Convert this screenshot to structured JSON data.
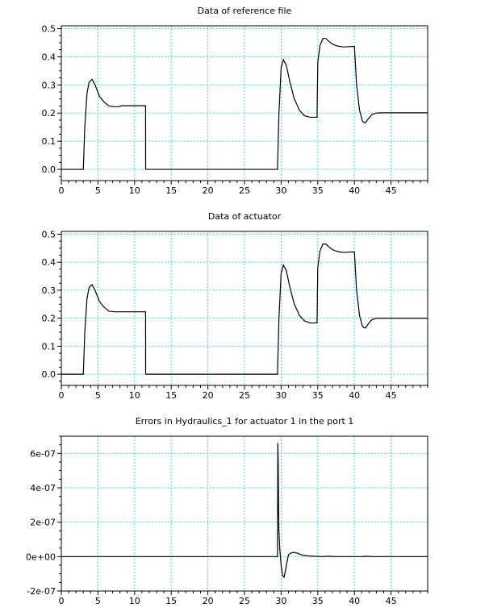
{
  "chart_data": [
    {
      "type": "line",
      "title": "Data of reference file",
      "xlim": [
        0,
        50
      ],
      "ylim": [
        -0.04,
        0.51
      ],
      "xticks": [
        0,
        5,
        10,
        15,
        20,
        25,
        30,
        35,
        40,
        45
      ],
      "yticks": [
        0.0,
        0.1,
        0.2,
        0.3,
        0.4,
        0.5
      ],
      "ytick_labels": [
        "0.0",
        "0.1",
        "0.2",
        "0.3",
        "0.4",
        "0.5"
      ],
      "grid": true,
      "series": [
        {
          "x": [
            0,
            3,
            3.2,
            3.5,
            3.8,
            4.2,
            4.6,
            5.2,
            5.8,
            6.5,
            7.3,
            8.0,
            8.2,
            9.0,
            11.5,
            11.51,
            29.5,
            29.7,
            30.0,
            30.3,
            30.7,
            31.2,
            31.8,
            32.5,
            33.2,
            34.0,
            34.9,
            35.0,
            35.3,
            35.7,
            36.1,
            36.5,
            37.0,
            37.7,
            38.5,
            39.3,
            40.0,
            40.3,
            40.7,
            41.1,
            41.5,
            41.9,
            42.4,
            43.0,
            44.0,
            45.0,
            50.0
          ],
          "y": [
            0.0,
            0.0,
            0.15,
            0.27,
            0.31,
            0.32,
            0.3,
            0.26,
            0.24,
            0.225,
            0.222,
            0.223,
            0.226,
            0.226,
            0.226,
            0.0,
            0.0,
            0.2,
            0.36,
            0.39,
            0.37,
            0.31,
            0.25,
            0.21,
            0.19,
            0.185,
            0.185,
            0.38,
            0.44,
            0.465,
            0.465,
            0.455,
            0.445,
            0.438,
            0.435,
            0.436,
            0.437,
            0.3,
            0.21,
            0.17,
            0.165,
            0.18,
            0.195,
            0.2,
            0.201,
            0.201,
            0.201
          ]
        }
      ]
    },
    {
      "type": "line",
      "title": "Data of actuator",
      "xlim": [
        0,
        50
      ],
      "ylim": [
        -0.04,
        0.51
      ],
      "xticks": [
        0,
        5,
        10,
        15,
        20,
        25,
        30,
        35,
        40,
        45
      ],
      "yticks": [
        0.0,
        0.1,
        0.2,
        0.3,
        0.4,
        0.5
      ],
      "ytick_labels": [
        "0.0",
        "0.1",
        "0.2",
        "0.3",
        "0.4",
        "0.5"
      ],
      "grid": true,
      "series": [
        {
          "x": [
            0,
            3,
            3.2,
            3.5,
            3.8,
            4.2,
            4.6,
            5.2,
            5.8,
            6.5,
            7.3,
            8.0,
            9.0,
            11.5,
            11.51,
            29.5,
            29.7,
            30.0,
            30.3,
            30.7,
            31.2,
            31.8,
            32.5,
            33.2,
            34.0,
            34.9,
            35.0,
            35.3,
            35.7,
            36.1,
            36.5,
            37.0,
            37.7,
            38.5,
            39.3,
            40.0,
            40.3,
            40.7,
            41.1,
            41.5,
            41.9,
            42.4,
            43.0,
            44.0,
            45.0,
            50.0
          ],
          "y": [
            0.0,
            0.0,
            0.15,
            0.27,
            0.31,
            0.32,
            0.3,
            0.26,
            0.24,
            0.225,
            0.223,
            0.223,
            0.223,
            0.223,
            0.0,
            0.0,
            0.2,
            0.36,
            0.39,
            0.37,
            0.31,
            0.25,
            0.21,
            0.19,
            0.183,
            0.183,
            0.38,
            0.44,
            0.465,
            0.465,
            0.455,
            0.445,
            0.438,
            0.435,
            0.436,
            0.437,
            0.3,
            0.21,
            0.17,
            0.165,
            0.18,
            0.195,
            0.2,
            0.2,
            0.2,
            0.2
          ]
        }
      ]
    },
    {
      "type": "line",
      "title": "Errors in Hydraulics_1 for actuator 1 in the port 1",
      "xlim": [
        0,
        50
      ],
      "ylim": [
        -2e-07,
        7e-07
      ],
      "xticks": [
        0,
        5,
        10,
        15,
        20,
        25,
        30,
        35,
        40,
        45
      ],
      "yticks": [
        -2e-07,
        0,
        2e-07,
        4e-07,
        6e-07
      ],
      "ytick_labels": [
        "-2e-07",
        "0e+00",
        "2e-07",
        "4e-07",
        "6e-07"
      ],
      "grid": true,
      "series": [
        {
          "x": [
            0,
            29.5,
            29.55,
            29.6,
            29.65,
            29.7,
            29.8,
            30.0,
            30.2,
            30.4,
            30.6,
            30.8,
            31.0,
            31.3,
            31.7,
            32.2,
            32.8,
            33.5,
            34.5,
            35.5,
            36.5,
            37.0,
            37.5,
            41.0,
            41.5,
            42.0,
            42.5,
            50.0
          ],
          "y": [
            0,
            0,
            6.6e-07,
            5.5e-07,
            3e-07,
            1.5e-07,
            5e-08,
            -5e-08,
            -1.1e-07,
            -1.2e-07,
            -8e-08,
            -3e-08,
            1e-08,
            2e-08,
            2.5e-08,
            2e-08,
            1e-08,
            5e-09,
            2e-09,
            0,
            2e-09,
            1e-09,
            0,
            0,
            2e-09,
            1e-09,
            0,
            0
          ]
        }
      ]
    }
  ]
}
